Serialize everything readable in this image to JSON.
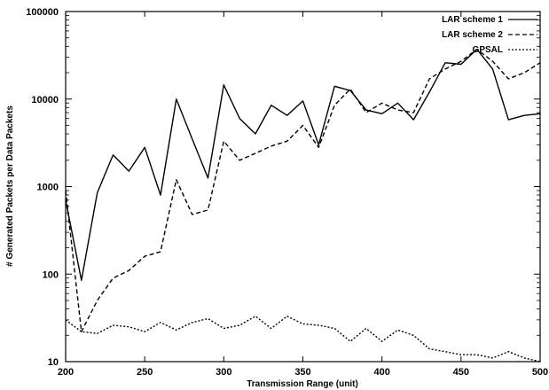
{
  "chart_data": {
    "type": "line",
    "title": "",
    "xlabel": "Transmission Range (unit)",
    "ylabel": "# Generated Packets per Data Packets",
    "xlim": [
      200,
      500
    ],
    "ylim": [
      10,
      100000
    ],
    "yscale": "log",
    "grid": false,
    "legend_position": "top-right",
    "xticks": [
      200,
      250,
      300,
      350,
      400,
      450,
      500
    ],
    "xtick_labels": [
      "200",
      "250",
      "300",
      "350",
      "400",
      "450",
      "500"
    ],
    "yticks": [
      10,
      100,
      1000,
      10000,
      100000
    ],
    "ytick_labels": [
      "10",
      "100",
      "1000",
      "10000",
      "100000"
    ],
    "x": [
      200,
      210,
      220,
      230,
      240,
      250,
      260,
      270,
      280,
      290,
      300,
      310,
      320,
      330,
      340,
      350,
      360,
      370,
      380,
      390,
      400,
      410,
      420,
      430,
      440,
      450,
      460,
      470,
      480,
      490,
      500
    ],
    "series": [
      {
        "name": "LAR scheme 1",
        "dash": "solid",
        "values": [
          700,
          85,
          850,
          2300,
          1500,
          2800,
          800,
          10000,
          3500,
          1250,
          14500,
          6000,
          4000,
          8500,
          6500,
          9500,
          3000,
          14000,
          12500,
          7500,
          6800,
          9000,
          5800,
          12000,
          26000,
          25000,
          37000,
          22000,
          5800,
          6500,
          6800
        ]
      },
      {
        "name": "LAR scheme 2",
        "dash": "dashed",
        "values": [
          900,
          22,
          50,
          90,
          110,
          160,
          180,
          1200,
          480,
          540,
          3300,
          2000,
          2400,
          2900,
          3300,
          5000,
          2800,
          8500,
          13000,
          7000,
          9000,
          7500,
          7000,
          17000,
          22000,
          27000,
          37000,
          27000,
          17000,
          20000,
          26000
        ]
      },
      {
        "name": "GPSAL",
        "dash": "dotted",
        "values": [
          30,
          22,
          21,
          26,
          25,
          22,
          28,
          23,
          28,
          31,
          24,
          26,
          33,
          24,
          33,
          27,
          26,
          24,
          17,
          24,
          17,
          23,
          20,
          14,
          13,
          12,
          12,
          11,
          13,
          11,
          10
        ]
      }
    ]
  }
}
